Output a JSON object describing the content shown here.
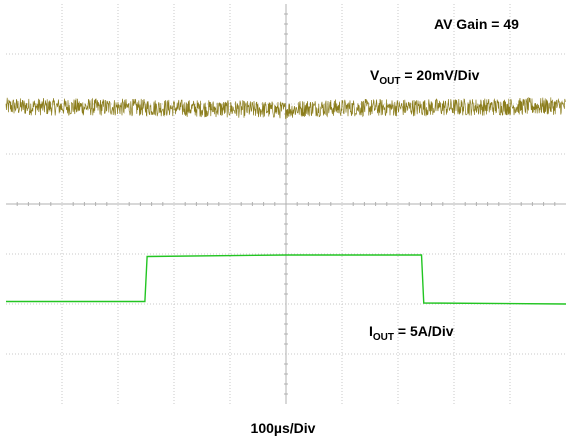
{
  "chart_data": {
    "type": "line",
    "title": "",
    "xlabel": "100µs/Div",
    "ylabel": "",
    "x_unit": "µs",
    "x_range": [
      0,
      1000
    ],
    "x_divisions": 10,
    "y_divisions": 8,
    "grid": true,
    "legend": "none",
    "annotations": {
      "gain": "AV Gain = 49",
      "vout_main": "V",
      "vout_sub": "OUT",
      "vout_scale": " = 20mV/Div",
      "iout_main": "I",
      "iout_sub": "OUT",
      "iout_scale": " = 5A/Div"
    },
    "series": [
      {
        "name": "VOUT",
        "color": "#8b7d1c",
        "scale": "20mV/Div",
        "noise_pp_div": 0.35,
        "x": [
          0,
          250,
          500,
          540,
          750,
          1000
        ],
        "y_div": [
          5.95,
          5.93,
          5.88,
          5.92,
          5.93,
          5.96
        ]
      },
      {
        "name": "IOUT",
        "color": "#22c522",
        "scale": "5A/Div",
        "x": [
          0,
          248,
          252,
          500,
          742,
          746,
          1000
        ],
        "y_div": [
          2.05,
          2.05,
          2.95,
          2.98,
          2.98,
          2.02,
          2.0
        ]
      }
    ]
  }
}
